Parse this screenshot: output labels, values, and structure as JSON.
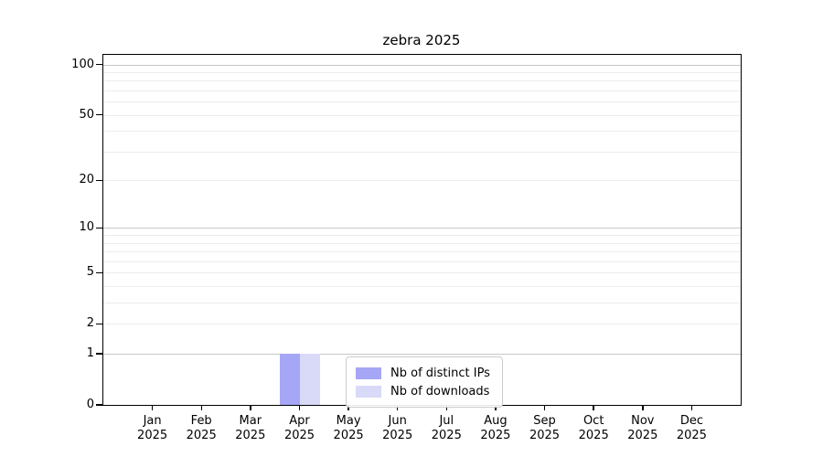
{
  "chart_data": {
    "type": "bar",
    "title": "zebra 2025",
    "year": "2025",
    "categories": [
      "Jan",
      "Feb",
      "Mar",
      "Apr",
      "May",
      "Jun",
      "Jul",
      "Aug",
      "Sep",
      "Oct",
      "Nov",
      "Dec"
    ],
    "series": [
      {
        "name": "Nb of distinct IPs",
        "color": "#a6a6f6",
        "values": [
          0,
          0,
          0,
          1,
          0,
          0,
          0,
          0,
          0,
          0,
          0,
          0
        ]
      },
      {
        "name": "Nb of downloads",
        "color": "#d9d9f8",
        "values": [
          0,
          0,
          0,
          1,
          0,
          0,
          0,
          0,
          0,
          0,
          0,
          0
        ]
      }
    ],
    "xlabel": "",
    "ylabel": "",
    "yticks": [
      0,
      1,
      2,
      5,
      10,
      20,
      50,
      100
    ],
    "major_grid_values": [
      1,
      10,
      100
    ],
    "minor_grid_values": [
      2,
      3,
      4,
      5,
      6,
      7,
      8,
      9,
      20,
      30,
      40,
      50,
      60,
      70,
      80,
      90
    ],
    "scale": "log10(1+x)",
    "ylim": [
      0,
      114
    ],
    "grid": true,
    "legend_position": "lower center inside"
  },
  "colors": {
    "major_grid": "#c8c8c8",
    "minor_grid": "#ececec",
    "axis": "#000000",
    "background": "#ffffff",
    "legend_border": "#cccccc"
  }
}
